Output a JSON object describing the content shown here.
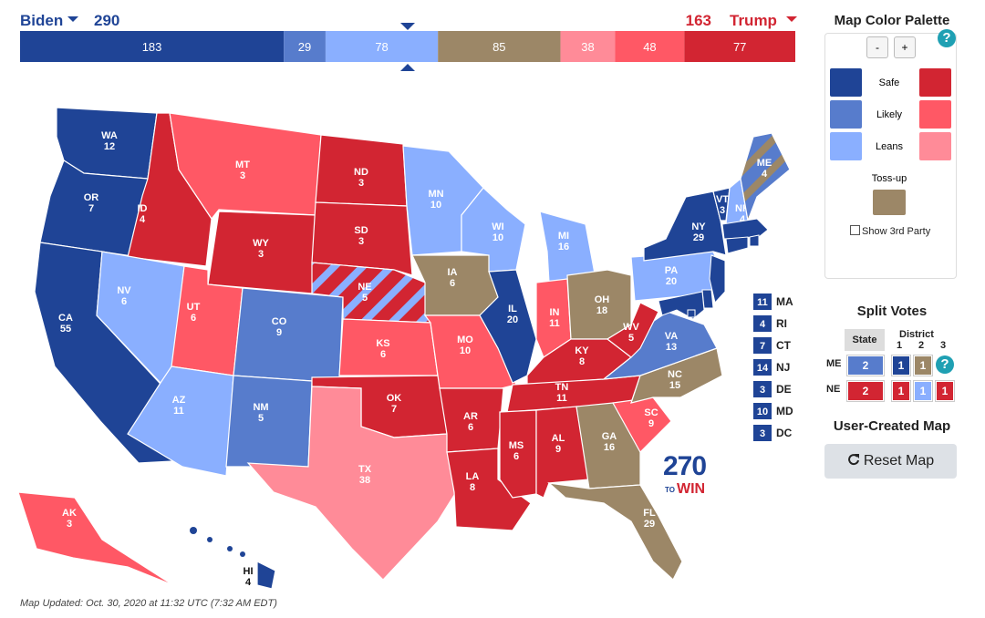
{
  "header": {
    "dem_name": "Biden",
    "dem_votes": 290,
    "rep_votes": 163,
    "rep_name": "Trump",
    "dem_color": "#1f4496",
    "rep_color": "#d22532"
  },
  "bar": [
    {
      "value": 183,
      "color": "#1f4496"
    },
    {
      "value": 29,
      "color": "#577ccc"
    },
    {
      "value": 78,
      "color": "#8aafff"
    },
    {
      "value": 85,
      "color": "#9c8767"
    },
    {
      "value": 38,
      "color": "#ff8b98"
    },
    {
      "value": 48,
      "color": "#ff5865"
    },
    {
      "value": 77,
      "color": "#d22532"
    }
  ],
  "states": [
    {
      "abbr": "WA",
      "ev": 12,
      "color": "#1f4496"
    },
    {
      "abbr": "OR",
      "ev": 7,
      "color": "#1f4496"
    },
    {
      "abbr": "CA",
      "ev": 55,
      "color": "#1f4496"
    },
    {
      "abbr": "ID",
      "ev": 4,
      "color": "#d22532"
    },
    {
      "abbr": "NV",
      "ev": 6,
      "color": "#8aafff"
    },
    {
      "abbr": "MT",
      "ev": 3,
      "color": "#ff5865"
    },
    {
      "abbr": "WY",
      "ev": 3,
      "color": "#d22532"
    },
    {
      "abbr": "UT",
      "ev": 6,
      "color": "#ff5865"
    },
    {
      "abbr": "AZ",
      "ev": 11,
      "color": "#8aafff"
    },
    {
      "abbr": "CO",
      "ev": 9,
      "color": "#577ccc"
    },
    {
      "abbr": "NM",
      "ev": 5,
      "color": "#577ccc"
    },
    {
      "abbr": "ND",
      "ev": 3,
      "color": "#d22532"
    },
    {
      "abbr": "SD",
      "ev": 3,
      "color": "#d22532"
    },
    {
      "abbr": "NE",
      "ev": 5,
      "color": "#d22532",
      "stripe_color": "#8aafff"
    },
    {
      "abbr": "KS",
      "ev": 6,
      "color": "#ff5865"
    },
    {
      "abbr": "OK",
      "ev": 7,
      "color": "#d22532"
    },
    {
      "abbr": "TX",
      "ev": 38,
      "color": "#ff8b98"
    },
    {
      "abbr": "MN",
      "ev": 10,
      "color": "#8aafff"
    },
    {
      "abbr": "IA",
      "ev": 6,
      "color": "#9c8767"
    },
    {
      "abbr": "MO",
      "ev": 10,
      "color": "#ff5865"
    },
    {
      "abbr": "AR",
      "ev": 6,
      "color": "#d22532"
    },
    {
      "abbr": "LA",
      "ev": 8,
      "color": "#d22532"
    },
    {
      "abbr": "WI",
      "ev": 10,
      "color": "#8aafff"
    },
    {
      "abbr": "IL",
      "ev": 20,
      "color": "#1f4496"
    },
    {
      "abbr": "MI",
      "ev": 16,
      "color": "#8aafff"
    },
    {
      "abbr": "IN",
      "ev": 11,
      "color": "#ff5865"
    },
    {
      "abbr": "OH",
      "ev": 18,
      "color": "#9c8767"
    },
    {
      "abbr": "KY",
      "ev": 8,
      "color": "#d22532"
    },
    {
      "abbr": "TN",
      "ev": 11,
      "color": "#d22532"
    },
    {
      "abbr": "MS",
      "ev": 6,
      "color": "#d22532"
    },
    {
      "abbr": "AL",
      "ev": 9,
      "color": "#d22532"
    },
    {
      "abbr": "GA",
      "ev": 16,
      "color": "#9c8767"
    },
    {
      "abbr": "FL",
      "ev": 29,
      "color": "#9c8767"
    },
    {
      "abbr": "SC",
      "ev": 9,
      "color": "#ff5865"
    },
    {
      "abbr": "NC",
      "ev": 15,
      "color": "#9c8767"
    },
    {
      "abbr": "VA",
      "ev": 13,
      "color": "#577ccc"
    },
    {
      "abbr": "WV",
      "ev": 5,
      "color": "#d22532"
    },
    {
      "abbr": "PA",
      "ev": 20,
      "color": "#8aafff"
    },
    {
      "abbr": "NY",
      "ev": 29,
      "color": "#1f4496"
    },
    {
      "abbr": "VT",
      "ev": 3,
      "color": "#1f4496"
    },
    {
      "abbr": "NH",
      "ev": 4,
      "color": "#8aafff"
    },
    {
      "abbr": "ME",
      "ev": 4,
      "color": "#577ccc",
      "stripe_color": "#9c8767"
    },
    {
      "abbr": "AK",
      "ev": 3,
      "color": "#ff5865"
    },
    {
      "abbr": "HI",
      "ev": 4,
      "color": "#1f4496"
    }
  ],
  "small_states": [
    {
      "ev": 11,
      "abbr": "MA",
      "color": "#1f4496"
    },
    {
      "ev": 4,
      "abbr": "RI",
      "color": "#1f4496"
    },
    {
      "ev": 7,
      "abbr": "CT",
      "color": "#1f4496"
    },
    {
      "ev": 14,
      "abbr": "NJ",
      "color": "#1f4496"
    },
    {
      "ev": 3,
      "abbr": "DE",
      "color": "#1f4496"
    },
    {
      "ev": 10,
      "abbr": "MD",
      "color": "#1f4496"
    },
    {
      "ev": 3,
      "abbr": "DC",
      "color": "#1f4496"
    }
  ],
  "logo": {
    "number": "270",
    "to": "TO",
    "win": "WIN"
  },
  "palette": {
    "title": "Map Color Palette",
    "minus": "-",
    "plus": "+",
    "help": "?",
    "labels": [
      "Safe",
      "Likely",
      "Leans"
    ],
    "dem_colors": [
      "#1f4496",
      "#577ccc",
      "#8aafff"
    ],
    "rep_colors": [
      "#d22532",
      "#ff5865",
      "#ff8b98"
    ],
    "tossup_label": "Toss-up",
    "tossup_color": "#9c8767",
    "third_party": "Show 3rd Party"
  },
  "split_votes": {
    "title": "Split Votes",
    "state_header": "State",
    "district_header": "District",
    "districts": [
      1,
      2,
      3
    ],
    "rows": [
      {
        "state": "ME",
        "values": [
          2,
          1,
          1
        ],
        "colors": [
          "#577ccc",
          "#1f4496",
          "#9c8767"
        ]
      },
      {
        "state": "NE",
        "values": [
          2,
          1,
          1,
          1
        ],
        "colors": [
          "#d22532",
          "#d22532",
          "#8aafff",
          "#d22532"
        ]
      }
    ],
    "help": "?"
  },
  "user_map": {
    "title": "User-Created Map",
    "button": "Reset Map"
  },
  "footer": "Map Updated: Oct. 30, 2020 at 11:32 UTC (7:32 AM EDT)"
}
